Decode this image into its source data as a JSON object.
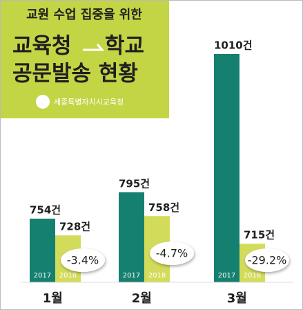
{
  "chart_data": {
    "type": "bar",
    "title": {
      "top": "교원 수업 집중을 위한",
      "from": "교육청",
      "to": "학교",
      "bottom": "공문발송 현황"
    },
    "source": "세종특별자치시교육청",
    "categories": [
      "1월",
      "2월",
      "3월"
    ],
    "ylim": [
      655,
      1010
    ],
    "series": [
      {
        "name": "2017",
        "color": "#15806f",
        "values": [
          754,
          795,
          1010
        ],
        "value_labels": [
          "754건",
          "795건",
          "1010건"
        ]
      },
      {
        "name": "2018",
        "color": "#d3dc5a",
        "values": [
          728,
          758,
          715
        ],
        "value_labels": [
          "728건",
          "758건",
          "715건"
        ]
      }
    ],
    "change": {
      "values": [
        -3.4,
        -4.7,
        -29.2
      ],
      "value_labels": [
        "-3.4%",
        "-4.7%",
        "-29.2%"
      ]
    }
  }
}
